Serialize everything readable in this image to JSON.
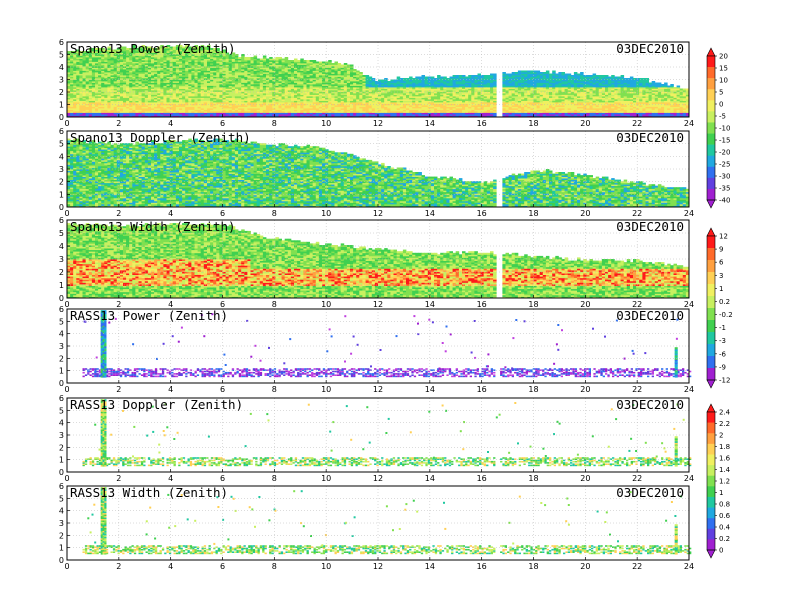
{
  "figure": {
    "date": "03DEC2010"
  },
  "chart_data": [
    {
      "type": "heatmap",
      "title": "Spano13 Power (Zenith)",
      "date": "03DEC2010",
      "x_ticks": [
        "0",
        "2",
        "4",
        "6",
        "8",
        "10",
        "12",
        "14",
        "16",
        "18",
        "20",
        "22",
        "24"
      ],
      "y_ticks": [
        "0",
        "1",
        "2",
        "3",
        "4",
        "5",
        "6"
      ],
      "xlim": [
        0,
        24
      ],
      "ylim": [
        0,
        6
      ],
      "grid": true,
      "colorbar": {
        "labels": [
          "20",
          "15",
          "10",
          "5",
          "0",
          "-5",
          "-10",
          "-15",
          "-20",
          "-25",
          "-30",
          "-35",
          "-40"
        ],
        "colors": [
          "#ff1a1a",
          "#ff6a2a",
          "#ffa040",
          "#ffd055",
          "#f0f060",
          "#c8f060",
          "#80e050",
          "#40d050",
          "#20c8a0",
          "#20a8e0",
          "#3070f0",
          "#6040e0",
          "#a020d0"
        ]
      },
      "top_profile": [
        [
          0,
          5.4
        ],
        [
          2,
          5.6
        ],
        [
          4,
          5.8
        ],
        [
          5.5,
          5.7
        ],
        [
          6.5,
          5.0
        ],
        [
          8,
          4.8
        ],
        [
          9.5,
          4.5
        ],
        [
          10.8,
          4.4
        ],
        [
          11.8,
          3.0
        ],
        [
          13,
          3.2
        ],
        [
          14.5,
          3.3
        ],
        [
          16.2,
          3.5
        ],
        [
          18,
          3.8
        ],
        [
          20,
          3.5
        ],
        [
          22,
          3.2
        ],
        [
          24,
          2.3
        ]
      ],
      "bands": [
        {
          "y": [
            0.0,
            0.4
          ],
          "value": -35
        },
        {
          "y": [
            0.4,
            1.2
          ],
          "value": 10
        },
        {
          "y": [
            1.2,
            1.8
          ],
          "value": 5
        },
        {
          "y": [
            1.8,
            2.6
          ],
          "value": -5
        },
        {
          "y": [
            2.6,
            6.0
          ],
          "value": -15
        }
      ],
      "gaps": [
        [
          16.5,
          16.7
        ]
      ]
    },
    {
      "type": "heatmap",
      "title": "Spano13 Doppler (Zenith)",
      "date": "03DEC2010",
      "x_ticks": [
        "0",
        "2",
        "4",
        "6",
        "8",
        "10",
        "12",
        "14",
        "16",
        "18",
        "20",
        "22",
        "24"
      ],
      "y_ticks": [
        "0",
        "1",
        "2",
        "3",
        "4",
        "5",
        "6"
      ],
      "xlim": [
        0,
        24
      ],
      "ylim": [
        0,
        6
      ],
      "grid": true,
      "top_profile": [
        [
          0,
          5.4
        ],
        [
          2,
          5.0
        ],
        [
          4,
          5.3
        ],
        [
          6,
          5.4
        ],
        [
          8,
          5.0
        ],
        [
          9.5,
          4.8
        ],
        [
          11,
          4.2
        ],
        [
          12,
          3.5
        ],
        [
          14,
          2.5
        ],
        [
          16.2,
          2.0
        ],
        [
          18,
          3.0
        ],
        [
          20,
          2.6
        ],
        [
          22,
          2.0
        ],
        [
          24,
          1.5
        ]
      ],
      "bands": [
        {
          "y": [
            0.0,
            6.0
          ],
          "value": 0
        }
      ],
      "gaps": [
        [
          16.5,
          16.7
        ]
      ]
    },
    {
      "type": "heatmap",
      "title": "Spano13 Width (Zenith)",
      "date": "03DEC2010",
      "x_ticks": [
        "0",
        "2",
        "4",
        "6",
        "8",
        "10",
        "12",
        "14",
        "16",
        "18",
        "20",
        "22",
        "24"
      ],
      "y_ticks": [
        "0",
        "1",
        "2",
        "3",
        "4",
        "5",
        "6"
      ],
      "xlim": [
        0,
        24
      ],
      "ylim": [
        0,
        6
      ],
      "grid": true,
      "colorbar": {
        "labels": [
          "12",
          "9",
          "6",
          "3",
          "1",
          "0.2",
          "-0.2",
          "-1",
          "-3",
          "-6",
          "-9",
          "-12"
        ],
        "colors": [
          "#ff1a1a",
          "#ff6a2a",
          "#ffa040",
          "#ffd055",
          "#f0f060",
          "#c8f060",
          "#80e050",
          "#40d050",
          "#20c8a0",
          "#20a8e0",
          "#3070f0",
          "#a020d0"
        ]
      },
      "top_profile": [
        [
          0,
          5.8
        ],
        [
          2,
          5.6
        ],
        [
          4,
          5.8
        ],
        [
          6,
          5.7
        ],
        [
          8,
          4.6
        ],
        [
          10,
          4.2
        ],
        [
          12,
          3.8
        ],
        [
          14,
          3.5
        ],
        [
          16.2,
          3.6
        ],
        [
          18,
          3.3
        ],
        [
          20,
          3.0
        ],
        [
          22,
          3.0
        ],
        [
          24,
          2.4
        ]
      ],
      "bands": [
        {
          "y": [
            0.0,
            6.0
          ],
          "value": 2
        }
      ],
      "gaps": [
        [
          16.5,
          16.7
        ]
      ]
    },
    {
      "type": "heatmap",
      "title": "RASS13 Power (Zenith)",
      "date": "03DEC2010",
      "x_ticks": [
        "0",
        "2",
        "4",
        "6",
        "8",
        "10",
        "12",
        "14",
        "16",
        "18",
        "20",
        "22",
        "24"
      ],
      "y_ticks": [
        "0",
        "1",
        "2",
        "3",
        "4",
        "5",
        "6"
      ],
      "xlim": [
        0,
        24
      ],
      "ylim": [
        0,
        6
      ],
      "grid": true,
      "main_band": {
        "y": [
          0.5,
          1.1
        ]
      },
      "column": {
        "x": [
          1.3,
          1.5
        ],
        "y": [
          0.5,
          5.9
        ]
      },
      "gaps": [
        [
          16.5,
          16.7
        ]
      ]
    },
    {
      "type": "heatmap",
      "title": "RASS13 Doppler (Zenith)",
      "date": "03DEC2010",
      "x_ticks": [
        "0",
        "2",
        "4",
        "6",
        "8",
        "10",
        "12",
        "14",
        "16",
        "18",
        "20",
        "22",
        "24"
      ],
      "y_ticks": [
        "0",
        "1",
        "2",
        "3",
        "4",
        "5",
        "6"
      ],
      "xlim": [
        0,
        24
      ],
      "ylim": [
        0,
        6
      ],
      "grid": true,
      "colorbar": {
        "labels": [
          "2.4",
          "2.2",
          "2",
          "1.8",
          "1.6",
          "1.4",
          "1.2",
          "1",
          "0.8",
          "0.6",
          "0.4",
          "0.2",
          "0"
        ],
        "colors": [
          "#ff1a1a",
          "#ff6a2a",
          "#ffa040",
          "#ffd055",
          "#f0f060",
          "#c8f060",
          "#80e050",
          "#40d050",
          "#20c8a0",
          "#20a8e0",
          "#3070f0",
          "#6040e0",
          "#a020d0"
        ]
      },
      "main_band": {
        "y": [
          0.5,
          1.1
        ]
      },
      "column": {
        "x": [
          1.3,
          1.5
        ],
        "y": [
          0.5,
          5.9
        ]
      },
      "gaps": [
        [
          16.5,
          16.7
        ]
      ]
    },
    {
      "type": "heatmap",
      "title": "RASS13 Width (Zenith)",
      "date": "03DEC2010",
      "x_ticks": [
        "0",
        "2",
        "4",
        "6",
        "8",
        "10",
        "12",
        "14",
        "16",
        "18",
        "20",
        "22",
        "24"
      ],
      "y_ticks": [
        "0",
        "1",
        "2",
        "3",
        "4",
        "5",
        "6"
      ],
      "xlim": [
        0,
        24
      ],
      "ylim": [
        0,
        6
      ],
      "grid": true,
      "main_band": {
        "y": [
          0.5,
          1.1
        ]
      },
      "column": {
        "x": [
          1.3,
          1.5
        ],
        "y": [
          0.5,
          5.9
        ]
      },
      "gaps": [
        [
          16.5,
          16.7
        ]
      ]
    }
  ]
}
